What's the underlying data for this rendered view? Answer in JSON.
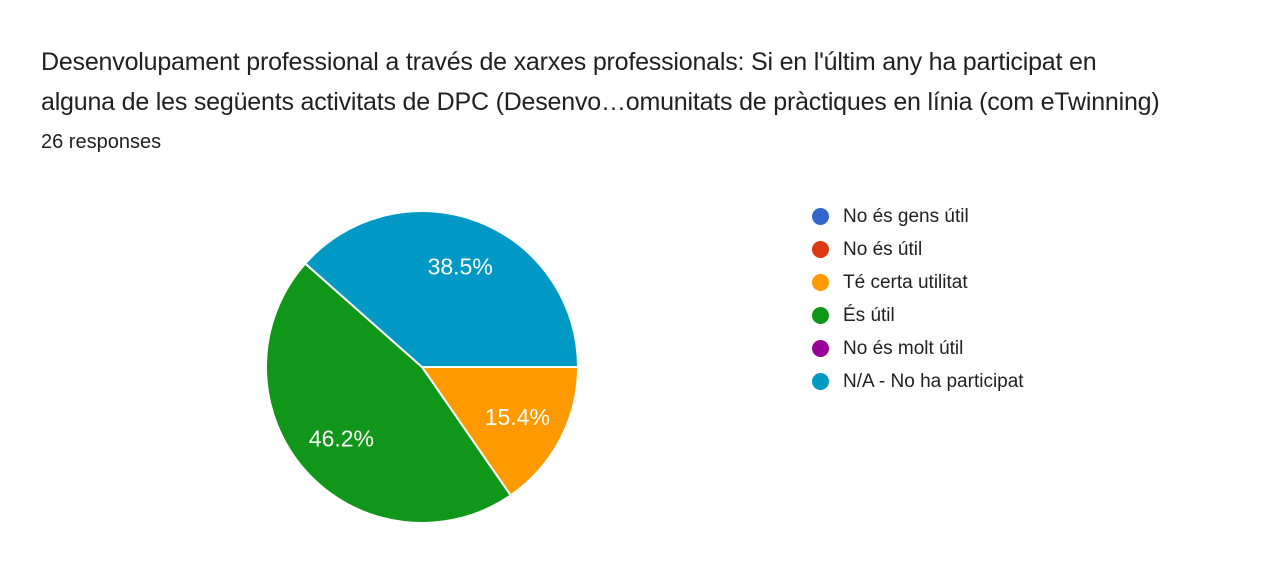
{
  "page": {
    "background": "#ffffff"
  },
  "header": {
    "title_line1": "Desenvolupament professional a través de xarxes professionals: Si en l'últim any ha participat en",
    "title_line2": "alguna de les següents activitats de DPC (Desenvo…omunitats de pràctiques en línia (com eTwinning)",
    "responses_count": "26 responses"
  },
  "chart_data": {
    "type": "pie",
    "title": "Desenvolupament professional a través de xarxes professionals: Si en l'últim any ha participat en alguna de les següents activitats de DPC (Desenvo…omunitats de pràctiques en línia (com eTwinning)",
    "responses_label": "26 responses",
    "responses_count": 26,
    "legend_position": "right",
    "start_angle_deg_from_east": 0,
    "direction": "clockwise",
    "slice_border_color": "#ffffff",
    "legend": [
      {
        "id": "no-es-gens-util",
        "label": "No és gens útil",
        "color": "#3366CC",
        "pct": 0,
        "pct_label": ""
      },
      {
        "id": "no-es-util",
        "label": "No és útil",
        "color": "#DC3912",
        "pct": 0,
        "pct_label": ""
      },
      {
        "id": "te-certa-utilitat",
        "label": "Té certa utilitat",
        "color": "#FF9900",
        "pct": 15.4,
        "pct_label": "15.4%"
      },
      {
        "id": "es-util",
        "label": "És útil",
        "color": "#109618",
        "pct": 46.2,
        "pct_label": "46.2%"
      },
      {
        "id": "no-es-molt-util",
        "label": "No és molt útil",
        "color": "#990099",
        "pct": 0,
        "pct_label": ""
      },
      {
        "id": "na-no-ha-participat",
        "label": "N/A - No ha participat",
        "color": "#0099C6",
        "pct": 38.5,
        "pct_label": "38.5%"
      }
    ]
  }
}
